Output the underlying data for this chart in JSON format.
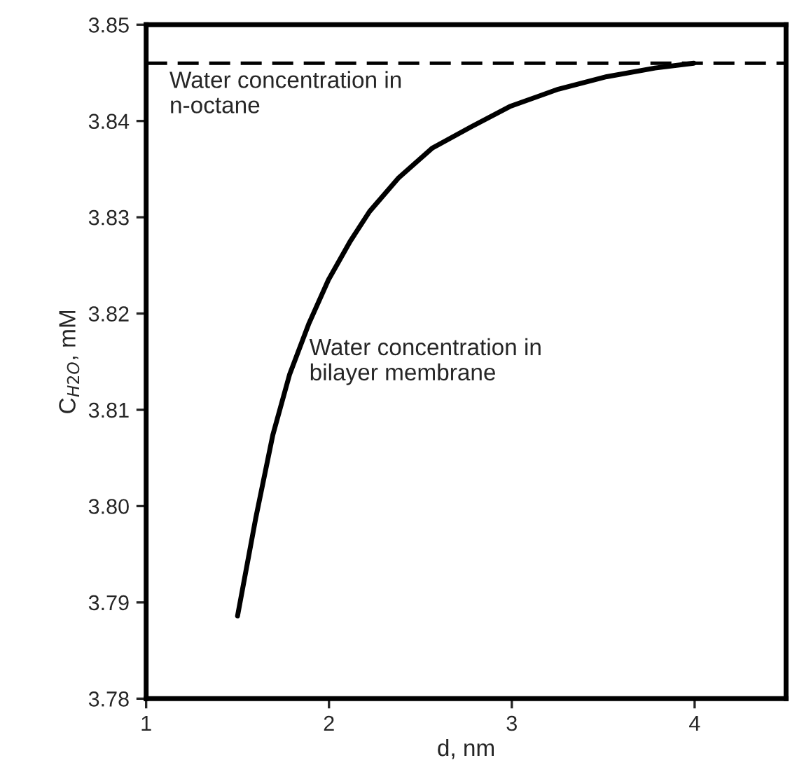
{
  "chart_data": {
    "type": "line",
    "xlabel": "d, nm",
    "ylabel": "C$_{H2O}$, mM",
    "x": [
      1.5,
      1.6,
      1.693,
      1.785,
      1.891,
      1.997,
      2.116,
      2.222,
      2.381,
      2.566,
      2.778,
      2.989,
      3.254,
      3.519,
      3.783,
      3.995
    ],
    "series": [
      {
        "color": "#000000",
        "values": [
          3.7886,
          3.7988,
          3.8074,
          3.8137,
          3.819,
          3.8235,
          3.8275,
          3.8306,
          3.8341,
          3.8372,
          3.8394,
          3.8415,
          3.8433,
          3.8446,
          3.8455,
          3.846
        ]
      }
    ],
    "xlim": [
      1,
      4.5
    ],
    "xticks": [
      1,
      2,
      3,
      4
    ],
    "ylim": [
      3.78,
      3.85
    ],
    "yticks": [
      3.78,
      3.79,
      {
        "value": 3.8,
        "label": "3.80"
      },
      3.81,
      3.82,
      3.83,
      3.84,
      3.85
    ],
    "ref_lines": [
      {
        "axis": "y",
        "value": 3.846,
        "label": "Water concentration in\nn-octane",
        "line_style": "dashed",
        "color": "#000000"
      }
    ],
    "annotations": [
      "Water concentration in\nbilayer membrane"
    ],
    "grid": false,
    "legend": false,
    "marker": "none",
    "line_style": "solid"
  }
}
